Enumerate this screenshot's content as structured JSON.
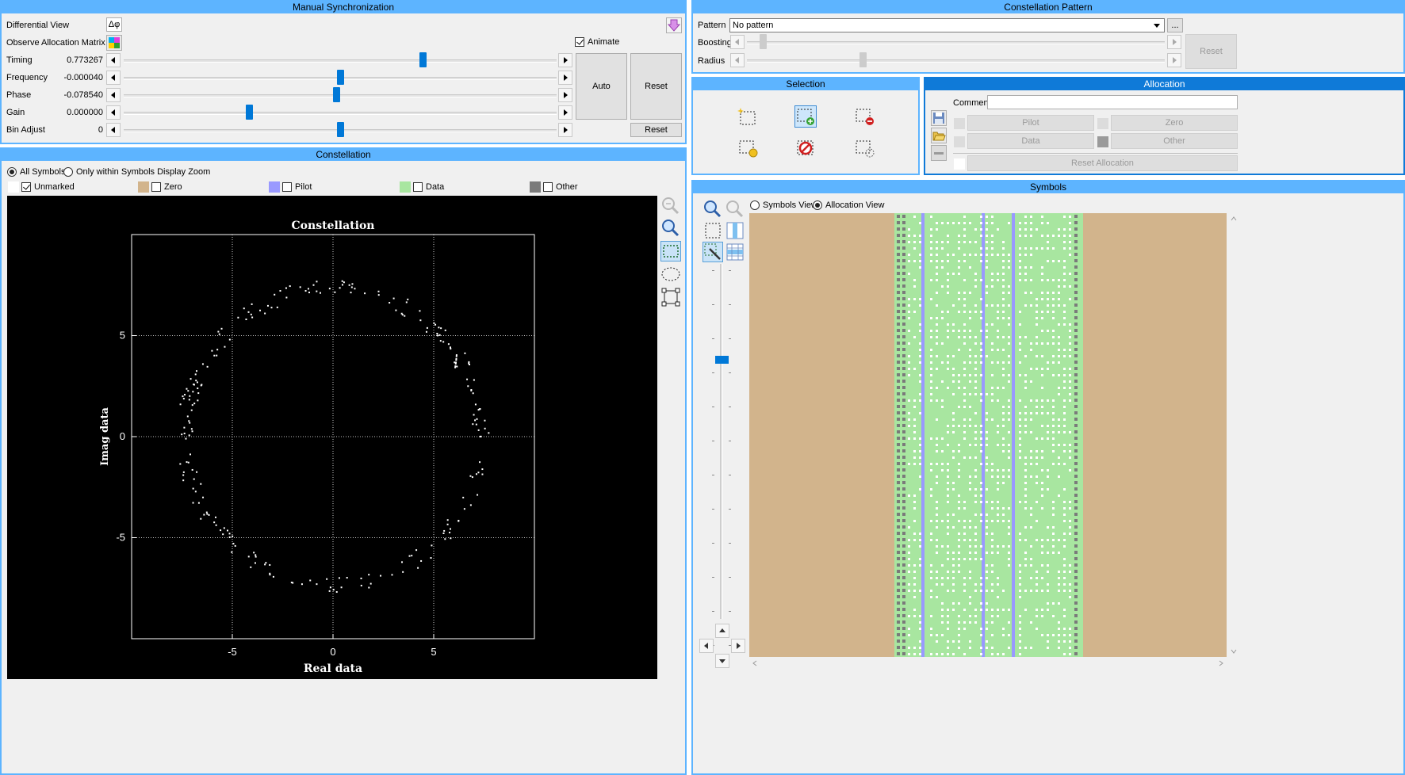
{
  "manual_sync": {
    "title": "Manual Synchronization",
    "differential_view_label": "Differential View",
    "differential_button": "Δφ",
    "observe_label": "Observe Allocation Matrix",
    "animate_label": "Animate",
    "animate_checked": true,
    "sliders": [
      {
        "label": "Timing",
        "value": "0.773267",
        "position": 0.69
      },
      {
        "label": "Frequency",
        "value": "-0.000040",
        "position": 0.5
      },
      {
        "label": "Phase",
        "value": "-0.078540",
        "position": 0.49
      },
      {
        "label": "Gain",
        "value": "0.000000",
        "position": 0.29
      },
      {
        "label": "Bin Adjust",
        "value": "0",
        "position": 0.5
      }
    ],
    "auto_label": "Auto",
    "reset_label": "Reset",
    "bin_reset_label": "Reset"
  },
  "constellation": {
    "title": "Constellation",
    "radio_all": "All Symbols",
    "radio_zoom": "Only within Symbols Display Zoom",
    "legend": [
      {
        "label": "Unmarked",
        "color": "#ffffff",
        "checked": true
      },
      {
        "label": "Zero",
        "color": "#d2b48c",
        "checked": false
      },
      {
        "label": "Pilot",
        "color": "#9999ff",
        "checked": false
      },
      {
        "label": "Data",
        "color": "#a8e6a0",
        "checked": false
      },
      {
        "label": "Other",
        "color": "#7a7a7a",
        "checked": false
      }
    ]
  },
  "chart_data": {
    "type": "scatter",
    "title": "Constellation",
    "xlabel": "Real data",
    "ylabel": "Imag data",
    "xlim": [
      -10,
      10
    ],
    "ylim": [
      -10,
      10
    ],
    "xticks": [
      -5,
      0,
      5
    ],
    "yticks": [
      -5,
      0,
      5
    ],
    "grid": true,
    "series": [
      {
        "color": "#ffffff",
        "radius": 7.35,
        "count": 240
      }
    ]
  },
  "constellation_pattern": {
    "title": "Constellation Pattern",
    "pattern_label": "Pattern",
    "pattern_value": "No pattern",
    "more_button": "...",
    "boosting_label": "Boosting",
    "boosting_position": 0.03,
    "radius_label": "Radius",
    "radius_position": 0.27,
    "reset_label": "Reset"
  },
  "selection": {
    "title": "Selection"
  },
  "allocation": {
    "title": "Allocation",
    "comment_label": "Comment",
    "comment_value": "",
    "pilot_label": "Pilot",
    "zero_label": "Zero",
    "data_label": "Data",
    "other_label": "Other",
    "reset_allocation_label": "Reset Allocation"
  },
  "symbols": {
    "title": "Symbols",
    "radio_symbols_view": "Symbols View",
    "radio_allocation_view": "Allocation View",
    "zoom_position": 0.27,
    "colors": {
      "zero": "#d2b48c",
      "data": "#a8e6a0",
      "pilot": "#9999ff",
      "other": "#7a7a7a"
    }
  }
}
